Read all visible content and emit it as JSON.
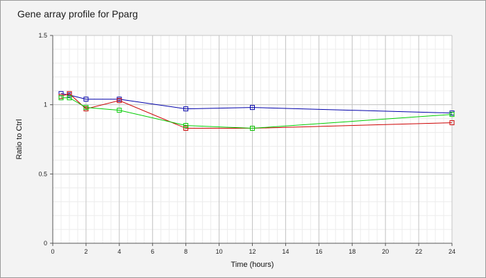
{
  "chart_data": {
    "type": "line",
    "title": "Gene array profile for Pparg",
    "xlabel": "Time (hours)",
    "ylabel": "Ratio to Ctrl",
    "xlim": [
      0,
      24
    ],
    "ylim": [
      0,
      1.5
    ],
    "x_ticks": [
      0,
      2,
      4,
      6,
      8,
      10,
      12,
      14,
      16,
      18,
      20,
      22,
      24
    ],
    "y_ticks": [
      0,
      0.5,
      1,
      1.5
    ],
    "x_tick_labels": [
      "0",
      "2",
      "4",
      "6",
      "8",
      "10",
      "12",
      "14",
      "16",
      "18",
      "20",
      "22",
      "24"
    ],
    "y_tick_labels": [
      "0",
      "0.5",
      "1",
      "1.5"
    ],
    "grid": true,
    "legend": "none",
    "series": [
      {
        "color": "#0000aa",
        "marker": "open-square",
        "x": [
          0.5,
          1,
          2,
          4,
          8,
          12,
          24
        ],
        "y": [
          1.08,
          1.07,
          1.04,
          1.04,
          0.97,
          0.98,
          0.94
        ]
      },
      {
        "color": "#cc0000",
        "marker": "open-square",
        "x": [
          0.5,
          1,
          2,
          4,
          8,
          12,
          24
        ],
        "y": [
          1.06,
          1.08,
          0.97,
          1.03,
          0.83,
          0.83,
          0.87
        ]
      },
      {
        "color": "#00cc00",
        "marker": "open-square",
        "x": [
          0.5,
          1,
          2,
          4,
          8,
          12,
          24
        ],
        "y": [
          1.05,
          1.05,
          0.98,
          0.96,
          0.85,
          0.83,
          0.93
        ]
      }
    ]
  }
}
